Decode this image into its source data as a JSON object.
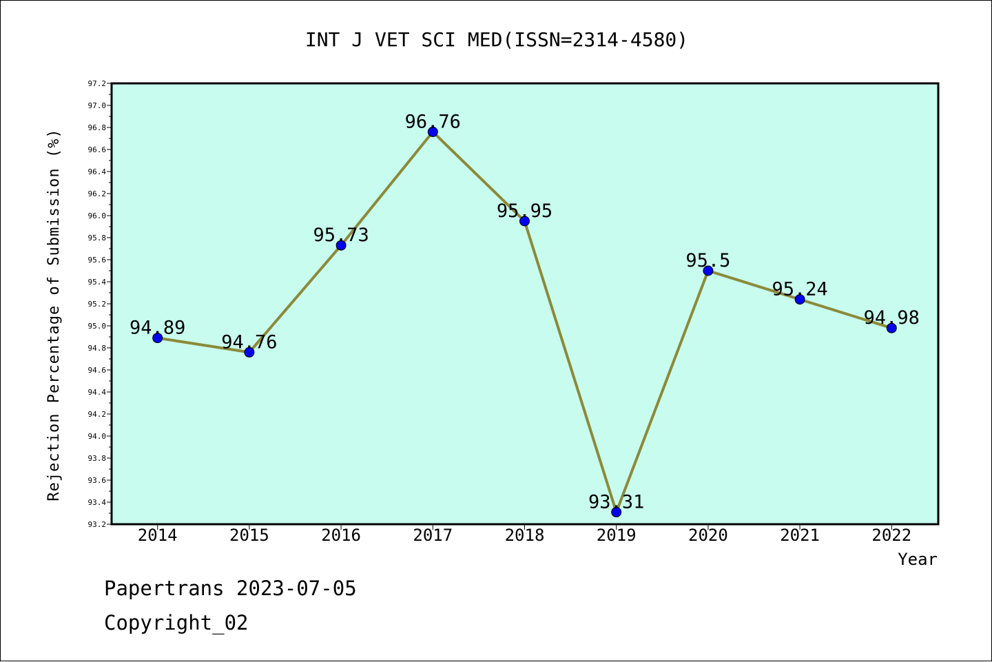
{
  "chart_data": {
    "type": "line",
    "title": "INT J VET SCI MED(ISSN=2314-4580)",
    "xlabel": "Year",
    "ylabel": "Rejection Percentage of Submission (%)",
    "categories": [
      "2014",
      "2015",
      "2016",
      "2017",
      "2018",
      "2019",
      "2020",
      "2021",
      "2022"
    ],
    "series": [
      {
        "values": [
          94.89,
          94.76,
          95.73,
          96.76,
          95.95,
          93.31,
          95.5,
          95.24,
          94.98
        ],
        "labels": [
          "94.89",
          "94.76",
          "95.73",
          "96.76",
          "95.95",
          "93.31",
          "95.5",
          "95.24",
          "94.98"
        ]
      }
    ],
    "ylim": [
      93.2,
      97.2
    ],
    "yticks": [
      "93.2",
      "93.4",
      "93.6",
      "93.8",
      "94.0",
      "94.2",
      "94.4",
      "94.6",
      "94.8",
      "95.0",
      "95.2",
      "95.4",
      "95.6",
      "95.8",
      "96.0",
      "96.2",
      "96.4",
      "96.6",
      "96.8",
      "97.0",
      "97.2"
    ],
    "grid": false,
    "colors": {
      "plot_background": "#c8fcee",
      "line": "#8b8a3a",
      "marker": "#0000ee"
    }
  },
  "footer": {
    "date_line": "Papertrans 2023-07-05",
    "copyright_line": "Copyright_02"
  }
}
